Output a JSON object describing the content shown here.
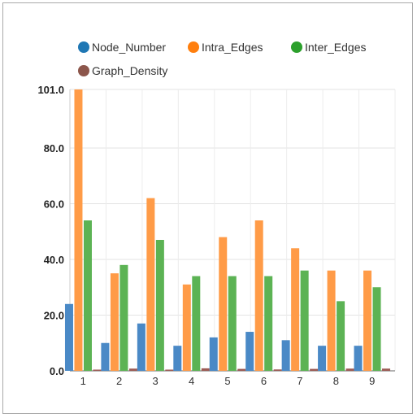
{
  "chart_data": {
    "type": "bar",
    "categories": [
      "1",
      "2",
      "3",
      "4",
      "5",
      "6",
      "7",
      "8",
      "9"
    ],
    "series": [
      {
        "name": "Node_Number",
        "color": "#4a89c6",
        "legend_color": "#1f77b4",
        "values": [
          24,
          10,
          17,
          9,
          12,
          14,
          11,
          9,
          9
        ]
      },
      {
        "name": "Intra_Edges",
        "color": "#ff9b47",
        "legend_color": "#ff7f0e",
        "values": [
          101,
          35,
          62,
          31,
          48,
          54,
          44,
          36,
          36
        ]
      },
      {
        "name": "Inter_Edges",
        "color": "#5cb354",
        "legend_color": "#2ca02c",
        "values": [
          54,
          38,
          47,
          34,
          34,
          34,
          36,
          25,
          30
        ]
      },
      {
        "name": "Graph_Density",
        "color": "#9c5b55",
        "legend_color": "#8c564b",
        "values": [
          0.3,
          0.8,
          0.4,
          0.9,
          0.7,
          0.5,
          0.7,
          0.8,
          0.8
        ]
      }
    ],
    "ylim": [
      0,
      101
    ],
    "yticks": [
      "0.0",
      "20.0",
      "40.0",
      "60.0",
      "80.0"
    ],
    "ymax_label": "101.0",
    "xlabel": "",
    "ylabel": "",
    "grid": true,
    "legend_position": "top"
  }
}
